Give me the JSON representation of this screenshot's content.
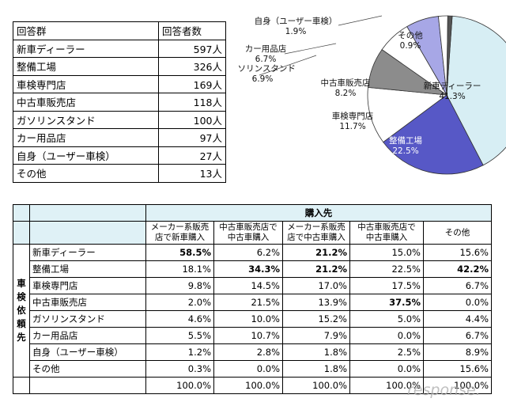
{
  "summary_table": {
    "header": [
      "回答群",
      "回答者数"
    ],
    "rows": [
      [
        "新車ディーラー",
        "597人"
      ],
      [
        "整備工場",
        "326人"
      ],
      [
        "車検専門店",
        "169人"
      ],
      [
        "中古車販売店",
        "118人"
      ],
      [
        "ガソリンスタンド",
        "100人"
      ],
      [
        "カー用品店",
        "97人"
      ],
      [
        "自身（ユーザー車検）",
        "27人"
      ],
      [
        "その他",
        "13人"
      ]
    ]
  },
  "chart_data": {
    "type": "pie",
    "slices": [
      {
        "label": "新車ディーラー",
        "value": 41.3,
        "text": "41.3%",
        "color": "#d7eef4"
      },
      {
        "label": "整備工場",
        "value": 22.5,
        "text": "22.5%",
        "color": "#5758c6"
      },
      {
        "label": "車検専門店",
        "value": 11.7,
        "text": "11.7%",
        "color": "#ffffff"
      },
      {
        "label": "中古車販売店",
        "value": 8.2,
        "text": "8.2%",
        "color": "#8c8c8c"
      },
      {
        "label": "ガソリンスタンド",
        "value": 6.9,
        "text": "6.9%",
        "color": "#ffffff"
      },
      {
        "label": "カー用品店",
        "value": 6.7,
        "text": "6.7%",
        "color": "#a7a7e6"
      },
      {
        "label": "自身（ユーザー車検）",
        "value": 1.9,
        "text": "1.9%",
        "color": "#ffffff"
      },
      {
        "label": "その他",
        "value": 0.9,
        "text": "0.9%",
        "color": "#555555"
      }
    ]
  },
  "cross_table": {
    "group_header": "購入先",
    "side_header": "車検依頼先",
    "columns": [
      [
        "メーカー系販売",
        "店で新車購入"
      ],
      [
        "中古車販売店で",
        "中古車購入"
      ],
      [
        "メーカー系販売",
        "店で中古車購入"
      ],
      [
        "中古車販売店で",
        "中古車購入"
      ],
      [
        "その他"
      ]
    ],
    "rows": [
      {
        "label": "新車ディーラー",
        "values": [
          "58.5%",
          "6.2%",
          "21.2%",
          "15.0%",
          "15.6%"
        ],
        "bold": [
          0,
          2
        ]
      },
      {
        "label": "整備工場",
        "values": [
          "18.1%",
          "34.3%",
          "21.2%",
          "22.5%",
          "42.2%"
        ],
        "bold": [
          1,
          2,
          4
        ]
      },
      {
        "label": "車検専門店",
        "values": [
          "9.8%",
          "14.5%",
          "17.0%",
          "17.5%",
          "6.7%"
        ],
        "bold": []
      },
      {
        "label": "中古車販売店",
        "values": [
          "2.0%",
          "21.5%",
          "13.9%",
          "37.5%",
          "0.0%"
        ],
        "bold": [
          3
        ]
      },
      {
        "label": "ガソリンスタンド",
        "values": [
          "4.6%",
          "10.0%",
          "15.2%",
          "5.0%",
          "4.4%"
        ],
        "bold": []
      },
      {
        "label": "カー用品店",
        "values": [
          "5.5%",
          "10.7%",
          "7.9%",
          "0.0%",
          "6.7%"
        ],
        "bold": []
      },
      {
        "label": "自身（ユーザー車検）",
        "values": [
          "1.2%",
          "2.8%",
          "1.8%",
          "2.5%",
          "8.9%"
        ],
        "bold": []
      },
      {
        "label": "その他",
        "values": [
          "0.3%",
          "0.0%",
          "1.8%",
          "0.0%",
          "15.6%"
        ],
        "bold": []
      }
    ],
    "totals": [
      "100.0%",
      "100.0%",
      "100.0%",
      "100.0%",
      "100.0%"
    ]
  },
  "watermark": "response."
}
